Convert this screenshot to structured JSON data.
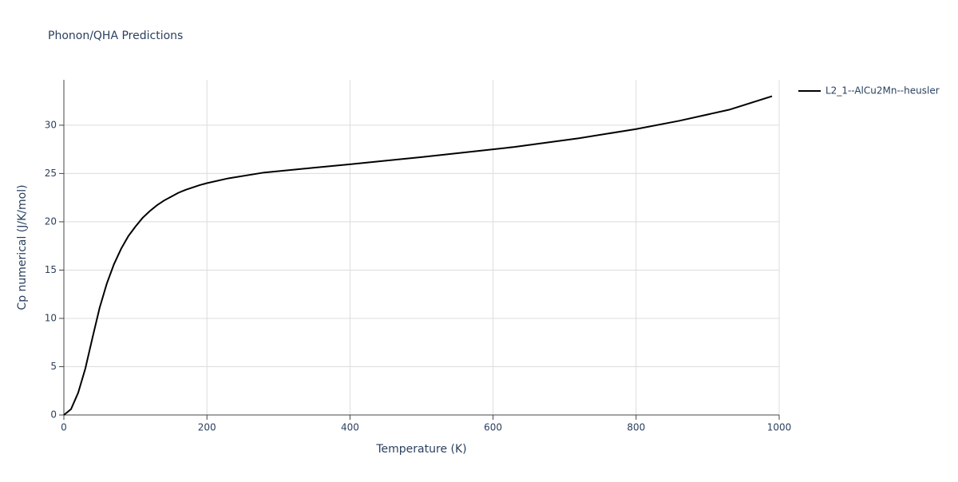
{
  "chart_data": {
    "type": "line",
    "title": "Phonon/QHA Predictions",
    "x_label": "Temperature (K)",
    "y_label": "Cp numerical (J/K/mol)",
    "x": [
      0,
      10,
      20,
      30,
      40,
      50,
      60,
      70,
      80,
      90,
      100,
      110,
      120,
      130,
      140,
      150,
      160,
      170,
      180,
      190,
      200,
      230,
      280,
      350,
      400,
      500,
      600,
      630,
      720,
      800,
      860,
      930,
      990
    ],
    "series": [
      {
        "name": "L2_1--AlCu2Mn--heusler",
        "color": "#000000",
        "values": [
          0,
          0.6,
          2.3,
          4.8,
          8,
          11.1,
          13.6,
          15.6,
          17.2,
          18.5,
          19.5,
          20.4,
          21.1,
          21.7,
          22.2,
          22.6,
          23.0,
          23.3,
          23.55,
          23.8,
          24.0,
          24.5,
          25.1,
          25.6,
          25.95,
          26.7,
          27.5,
          27.75,
          28.65,
          29.6,
          30.45,
          31.6,
          33.0
        ]
      }
    ],
    "xlim": [
      0,
      1000
    ],
    "xticks": [
      0,
      200,
      400,
      600,
      800,
      1000
    ],
    "ylim": [
      0,
      34.7
    ],
    "yticks": [
      0,
      5,
      10,
      15,
      20,
      25,
      30
    ],
    "grid": true,
    "legend": "right"
  }
}
